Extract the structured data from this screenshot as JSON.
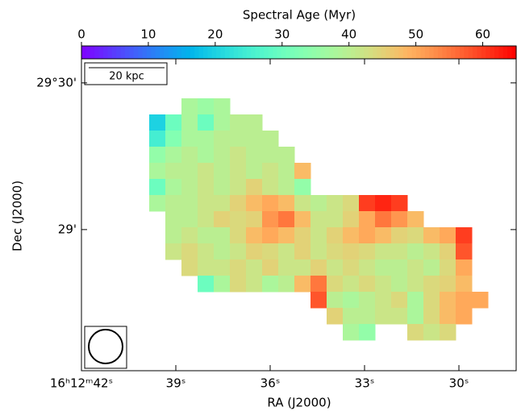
{
  "chart_data": {
    "type": "heatmap",
    "colorbar_label": "Spectral Age (Myr)",
    "colormap": "rainbow",
    "clim": [
      0,
      65
    ],
    "cticks": [
      0,
      10,
      20,
      30,
      40,
      50,
      60
    ],
    "x_label": "RA (J2000)",
    "y_label": "Dec (J2000)",
    "xlim": [
      42,
      28.18
    ],
    "xticks": [
      {
        "value": 42,
        "label": "16ʰ12ᵐ42ˢ"
      },
      {
        "value": 39,
        "label": "39ˢ"
      },
      {
        "value": 36,
        "label": "36ˢ"
      },
      {
        "value": 33,
        "label": "33ˢ"
      },
      {
        "value": 30,
        "label": "30ˢ"
      }
    ],
    "ylim": [
      28.519,
      29.582
    ],
    "yticks": [
      {
        "value": 29.5,
        "label": "29°30'"
      },
      {
        "value": 29,
        "label": "29'"
      }
    ],
    "scale_bar": "20 kpc",
    "values": [
      [
        null,
        null,
        38,
        36,
        38,
        null,
        null,
        null,
        null,
        null,
        null,
        null,
        null,
        null,
        null,
        null,
        null,
        null,
        null,
        null,
        null
      ],
      [
        20,
        30,
        38,
        30,
        38,
        40,
        40,
        null,
        null,
        null,
        null,
        null,
        null,
        null,
        null,
        null,
        null,
        null,
        null,
        null,
        null
      ],
      [
        25,
        33,
        38,
        38,
        40,
        40,
        40,
        40,
        null,
        null,
        null,
        null,
        null,
        null,
        null,
        null,
        null,
        null,
        null,
        null,
        null
      ],
      [
        35,
        38,
        40,
        38,
        40,
        42,
        40,
        40,
        40,
        null,
        null,
        null,
        null,
        null,
        null,
        null,
        null,
        null,
        null,
        null,
        null
      ],
      [
        38,
        40,
        40,
        42,
        40,
        42,
        40,
        42,
        40,
        48,
        null,
        null,
        null,
        null,
        null,
        null,
        null,
        null,
        null,
        null,
        null
      ],
      [
        30,
        38,
        40,
        42,
        40,
        42,
        45,
        42,
        40,
        35,
        null,
        null,
        null,
        null,
        null,
        null,
        null,
        null,
        null,
        null,
        null
      ],
      [
        38,
        40,
        40,
        42,
        42,
        45,
        48,
        50,
        48,
        42,
        40,
        42,
        44,
        60,
        62,
        60,
        null,
        null,
        null,
        null,
        null
      ],
      [
        null,
        40,
        40,
        42,
        45,
        44,
        45,
        52,
        55,
        48,
        42,
        42,
        45,
        50,
        55,
        52,
        48,
        null,
        null,
        null,
        null
      ],
      [
        null,
        40,
        42,
        40,
        40,
        44,
        48,
        50,
        48,
        45,
        42,
        45,
        48,
        50,
        48,
        45,
        44,
        48,
        50,
        60,
        null
      ],
      [
        null,
        42,
        44,
        42,
        40,
        42,
        45,
        44,
        42,
        45,
        42,
        44,
        45,
        44,
        42,
        42,
        40,
        42,
        45,
        58,
        null
      ],
      [
        null,
        null,
        44,
        42,
        42,
        44,
        42,
        45,
        42,
        42,
        45,
        42,
        44,
        42,
        40,
        40,
        42,
        40,
        44,
        50,
        null
      ],
      [
        null,
        null,
        null,
        30,
        38,
        44,
        42,
        38,
        40,
        48,
        55,
        44,
        42,
        44,
        42,
        40,
        42,
        44,
        45,
        48,
        null
      ],
      [
        null,
        null,
        null,
        null,
        null,
        null,
        null,
        null,
        null,
        null,
        58,
        40,
        38,
        40,
        42,
        44,
        38,
        44,
        48,
        50,
        50
      ],
      [
        null,
        null,
        null,
        null,
        null,
        null,
        null,
        null,
        null,
        null,
        null,
        45,
        40,
        40,
        42,
        42,
        38,
        44,
        48,
        50,
        null
      ],
      [
        null,
        null,
        null,
        null,
        null,
        null,
        null,
        null,
        null,
        null,
        null,
        null,
        38,
        35,
        null,
        null,
        44,
        42,
        44,
        null,
        null
      ]
    ]
  }
}
